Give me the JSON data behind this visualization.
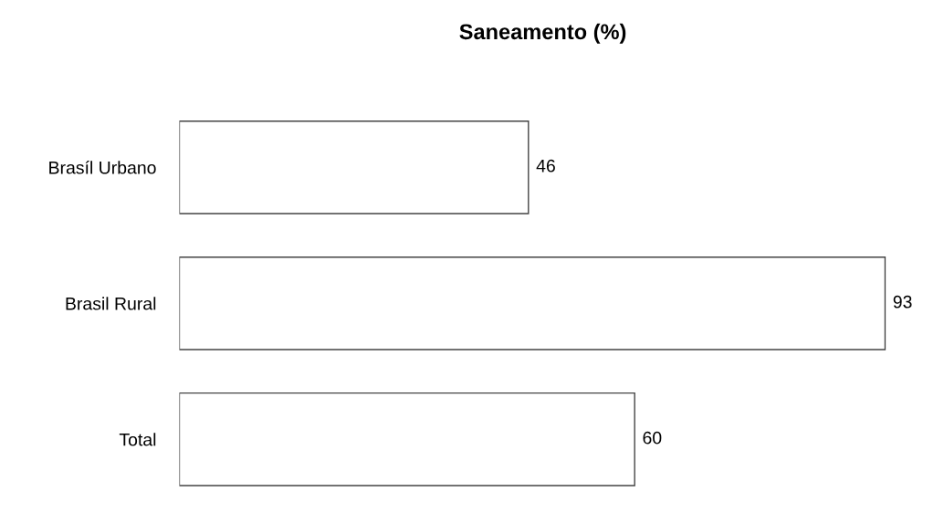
{
  "chart_data": {
    "type": "bar",
    "orientation": "horizontal",
    "title": "Saneamento (%)",
    "categories": [
      "Brasíl Urbano",
      "Brasil Rural",
      "Total"
    ],
    "values": [
      46,
      93,
      60
    ],
    "color": "#ffffff",
    "data_labels": true,
    "grid": false,
    "legend": false
  }
}
